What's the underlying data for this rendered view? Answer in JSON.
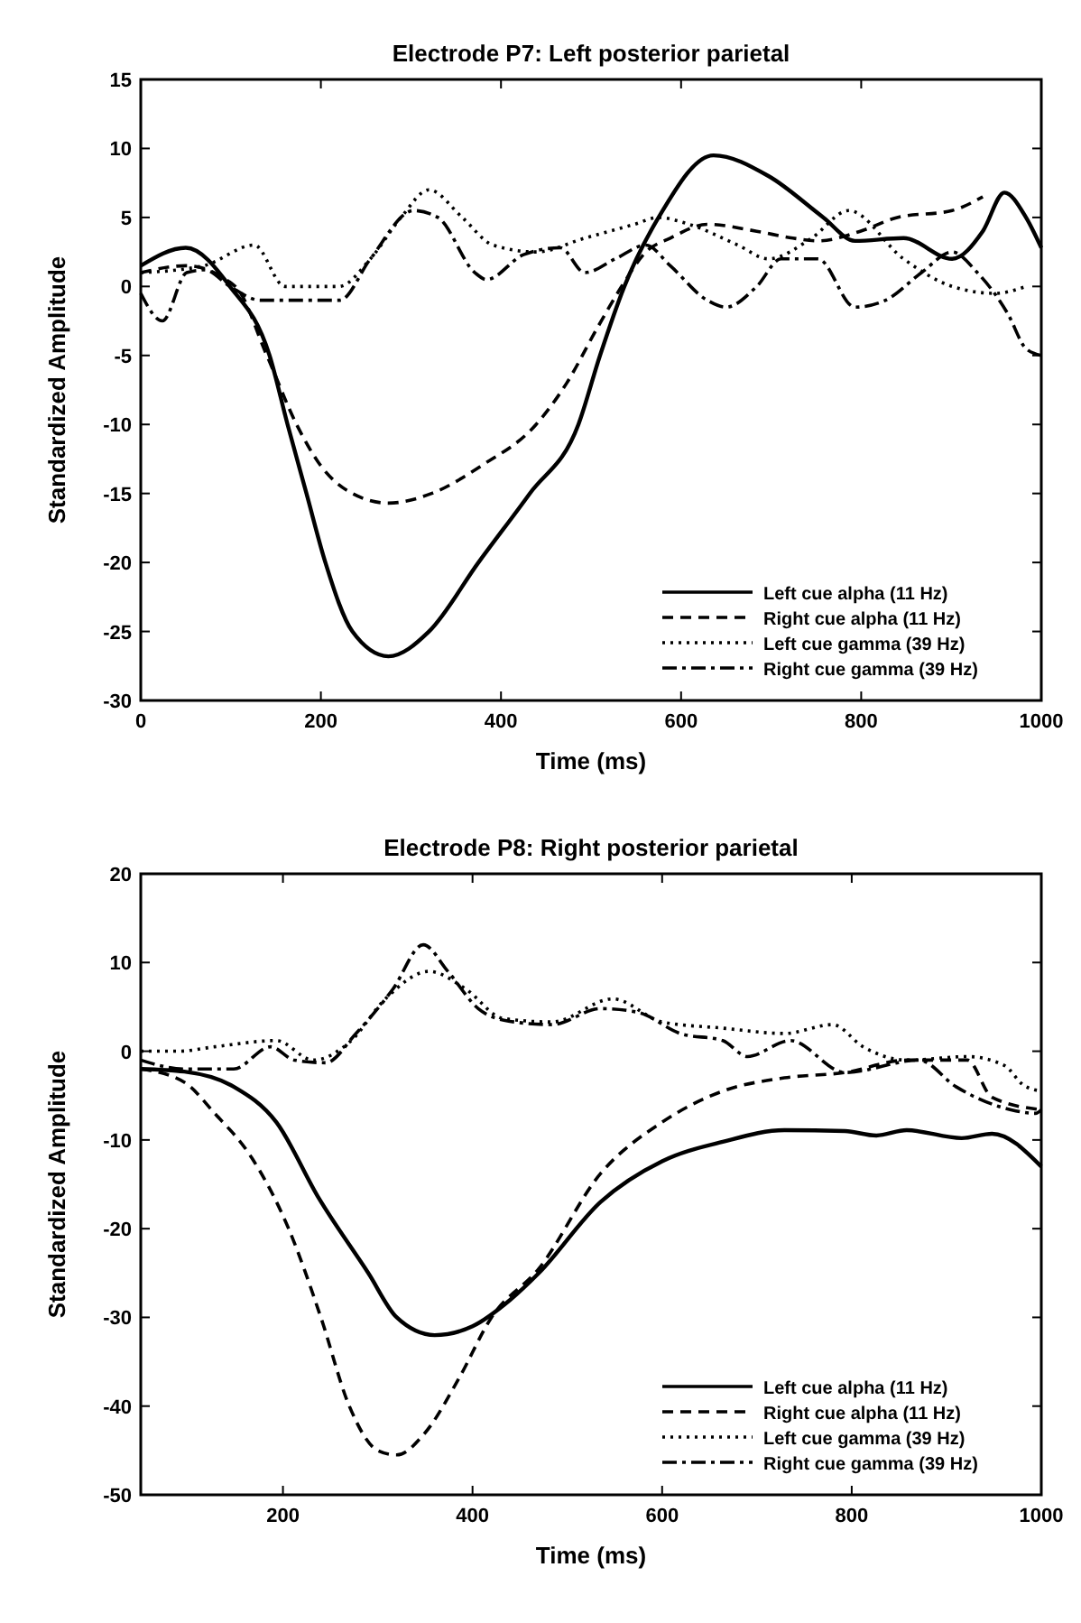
{
  "chart_data": [
    {
      "type": "line",
      "title": "Electrode P7: Left posterior parietal",
      "xlabel": "Time (ms)",
      "ylabel": "Standardized Amplitude",
      "xlim": [
        0,
        1000
      ],
      "xticks": [
        0,
        200,
        400,
        600,
        800,
        1000
      ],
      "ylim": [
        -30,
        15
      ],
      "yticks": [
        -30,
        -25,
        -20,
        -15,
        -10,
        -5,
        0,
        5,
        10,
        15
      ],
      "grid": false,
      "legend": "bottom right",
      "series": [
        {
          "name": "Left cue alpha (11 Hz)",
          "color": "#000000",
          "line_style": "solid",
          "x": [
            0,
            50,
            99,
            143,
            163,
            184,
            205,
            235,
            275,
            320,
            375,
            432,
            486,
            510,
            537,
            575,
            636,
            697,
            758,
            793,
            847,
            901,
            935,
            959,
            983,
            1000
          ],
          "values": [
            1.5,
            2.8,
            0,
            -5,
            -10,
            -15,
            -20,
            -25,
            -26.8,
            -25,
            -20,
            -15,
            -10,
            -5,
            0,
            5,
            9.5,
            8,
            5,
            3.3,
            3.5,
            2,
            4,
            6.8,
            5,
            2.8
          ]
        },
        {
          "name": "Right cue alpha (11 Hz)",
          "color": "#000000",
          "line_style": "dashed",
          "x": [
            0,
            50,
            105,
            140,
            173,
            200,
            235,
            275,
            323,
            378,
            439,
            473,
            507,
            534,
            561,
            588,
            629,
            684,
            724,
            752,
            799,
            840,
            901,
            935
          ],
          "values": [
            1,
            1.5,
            0,
            -5,
            -10,
            -13,
            -15,
            -15.7,
            -15,
            -13,
            -10,
            -7,
            -3,
            0,
            2.5,
            3.5,
            4.5,
            4,
            3.5,
            3.3,
            4,
            5,
            5.5,
            6.5
          ]
        },
        {
          "name": "Left cue gamma (39 Hz)",
          "color": "#000000",
          "line_style": "dotted",
          "x": [
            0,
            70,
            126,
            160,
            220,
            255,
            289,
            320,
            357,
            391,
            439,
            493,
            548,
            575,
            609,
            663,
            697,
            745,
            786,
            847,
            901,
            949,
            983
          ],
          "values": [
            1,
            1.5,
            3,
            0,
            0,
            2,
            5,
            7,
            5,
            3,
            2.5,
            3.5,
            4.5,
            5,
            4.5,
            3,
            2,
            3.5,
            5.5,
            2,
            0,
            -0.5,
            0
          ]
        },
        {
          "name": "Right cue gamma (39 Hz)",
          "color": "#000000",
          "line_style": "dashdot",
          "x": [
            0,
            24,
            51,
            71,
            99,
            133,
            221,
            255,
            303,
            330,
            371,
            384,
            425,
            466,
            493,
            527,
            561,
            588,
            629,
            650,
            684,
            711,
            752,
            793,
            827,
            867,
            901,
            929,
            963,
            983,
            1000
          ],
          "values": [
            -0.5,
            -2.5,
            1,
            1.2,
            0,
            -1,
            -1,
            2,
            5.5,
            5,
            1,
            0.5,
            2.3,
            2.8,
            1,
            2,
            3,
            1.5,
            -1,
            -1.5,
            0,
            2,
            2,
            -1.5,
            -1,
            1,
            2.5,
            1,
            -2,
            -4.5,
            -5
          ]
        }
      ]
    },
    {
      "type": "line",
      "title": "Electrode P8: Right posterior parietal",
      "xlabel": "Time (ms)",
      "ylabel": "Standardized Amplitude",
      "xlim": [
        50,
        1000
      ],
      "xticks": [
        200,
        400,
        600,
        800,
        1000
      ],
      "ylim": [
        -50,
        20
      ],
      "yticks": [
        -50,
        -40,
        -30,
        -20,
        -10,
        0,
        10,
        20
      ],
      "grid": false,
      "legend": "bottom right",
      "series": [
        {
          "name": "Left cue alpha (11 Hz)",
          "color": "#000000",
          "line_style": "solid",
          "x": [
            50,
            96,
            148,
            193,
            238,
            290,
            320,
            360,
            400,
            440,
            470,
            535,
            600,
            664,
            729,
            793,
            826,
            858,
            916,
            948,
            1000
          ],
          "values": [
            -2,
            -2.3,
            -4,
            -8,
            -16.6,
            -25,
            -30,
            -32,
            -31,
            -28,
            -25,
            -17,
            -12.4,
            -10.2,
            -8.9,
            -9,
            -9.5,
            -8.9,
            -9.8,
            -9.3,
            -13
          ]
        },
        {
          "name": "Right cue alpha (11 Hz)",
          "color": "#000000",
          "line_style": "dashed",
          "x": [
            50,
            96,
            128,
            167,
            206,
            240,
            270,
            300,
            320,
            350,
            385,
            420,
            470,
            535,
            600,
            664,
            729,
            793,
            858,
            922,
            948,
            1000
          ],
          "values": [
            -2,
            -3.5,
            -7,
            -12,
            -20,
            -30,
            -40,
            -45,
            -45.5,
            -43,
            -37,
            -30,
            -24.5,
            -13.8,
            -8,
            -4.5,
            -3,
            -2.4,
            -1,
            -1,
            -5.2,
            -6.6
          ]
        },
        {
          "name": "Left cue gamma (39 Hz)",
          "color": "#000000",
          "line_style": "dotted",
          "x": [
            50,
            90,
            128,
            193,
            232,
            270,
            309,
            354,
            393,
            432,
            484,
            548,
            600,
            664,
            729,
            780,
            812,
            858,
            922,
            961,
            981,
            1000
          ],
          "values": [
            0,
            0,
            0.5,
            1.2,
            -1,
            1,
            6,
            9,
            7,
            3.7,
            3.3,
            5.9,
            3.3,
            2.6,
            2,
            3,
            0.5,
            -1,
            -0.6,
            -1.6,
            -3.8,
            -4.5
          ]
        },
        {
          "name": "Right cue gamma (39 Hz)",
          "color": "#000000",
          "line_style": "dashdot",
          "x": [
            50,
            96,
            148,
            187,
            212,
            245,
            277,
            316,
            348,
            374,
            406,
            438,
            484,
            535,
            574,
            619,
            664,
            690,
            735,
            793,
            871,
            910,
            968,
            994,
            1000
          ],
          "values": [
            -1,
            -2,
            -2,
            0.5,
            -1,
            -1.3,
            2,
            7,
            12,
            9,
            4.8,
            3.4,
            3,
            4.8,
            4.4,
            2,
            1.2,
            -0.6,
            1.2,
            -2.4,
            -1,
            -4,
            -6.6,
            -7,
            -6.6
          ]
        }
      ]
    }
  ]
}
